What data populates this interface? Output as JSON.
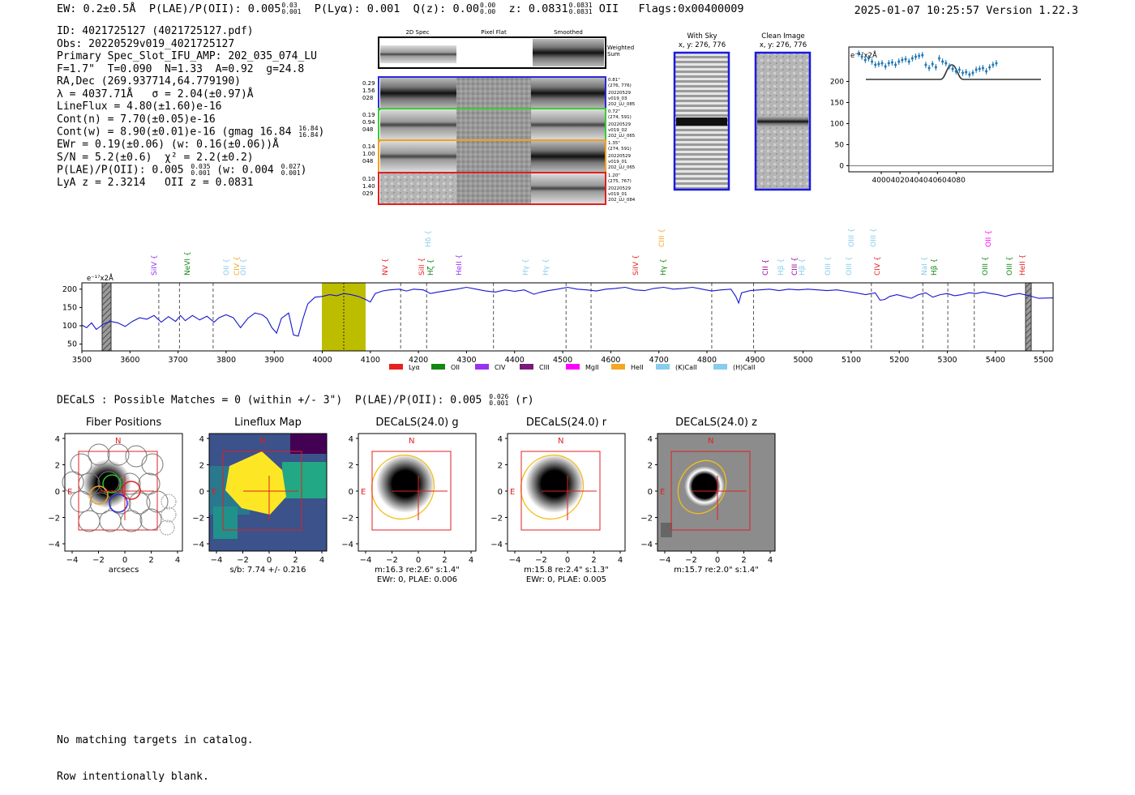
{
  "header": {
    "ew": "EW: 0.2±0.5Å",
    "plae_label": "P(LAE)/P(OII): 0.005",
    "plae_hi": "0.03",
    "plae_lo": "0.001",
    "plya": "P(Lyα): 0.001",
    "qz_label": "Q(z): 0.00",
    "qz_hi": "0.00",
    "qz_lo": "0.00",
    "z_label": "z: 0.0831",
    "z_hi": "0.0831",
    "z_lo": "0.0831",
    "z_line": "OII",
    "flags": "Flags:0x00400009",
    "datetime": "2025-01-07 10:25:57",
    "version": "Version 1.22.3"
  },
  "info": {
    "id": "ID: 4021725127 (4021725127.pdf)",
    "obs": "Obs: 20220529v019_4021725127",
    "primary": "Primary Spec_Slot_IFU_AMP: 202_035_074_LU",
    "fiber": "F=1.7\"  T=0.090  N=1.33  A=0.92  g=24.8",
    "radec": "RA,Dec (269.937714,64.779190)",
    "lambda": "λ = 4037.71Å   σ = 2.04(±0.97)Å",
    "lineflux": "LineFlux = 4.80(±1.60)e-16",
    "contn": "Cont(n) = 7.70(±0.05)e-16",
    "contw": "Cont(w) = 8.90(±0.01)e-16 (gmag 16.84",
    "contw_hi": "16.84",
    "contw_lo": "16.84",
    "contw_end": ")",
    "ewr": "EWr = 0.19(±0.06) (w: 0.16(±0.06))Å",
    "sn": "S/N = 5.2(±0.6)  χ² = 2.2(±0.2)",
    "plae": "P(LAE)/P(OII): 0.005",
    "plae_hi": "0.035",
    "plae_lo": "0.001",
    "plae_w": " (w: 0.004",
    "plae_w_hi": "0.027",
    "plae_w_lo": "0.001",
    "plae_w_end": ")",
    "lyaz": "LyA z = 2.3214   OII z = 0.0831"
  },
  "cutouts": {
    "col_headers": [
      "2D Spec",
      "Pixel Flat",
      "Smoothed"
    ],
    "weighted_label": "Weighted",
    "weighted_label2": "Sum",
    "rows": [
      {
        "left": [
          "0.29",
          "1.56",
          "028"
        ],
        "right": [
          "0.81\"",
          "(276, 776)",
          "20220529",
          "v019_03",
          "202_LU_085"
        ],
        "color": "#2a2ad6"
      },
      {
        "left": [
          "0.19",
          "0.94",
          "048"
        ],
        "right": [
          "0.72\"",
          "(274, 591)",
          "20220529",
          "v019_02",
          "202_LU_065"
        ],
        "color": "#3acb34"
      },
      {
        "left": [
          "0.14",
          "1.00",
          "048"
        ],
        "right": [
          "1.35\"",
          "(274, 591)",
          "20220529",
          "v019_01",
          "202_LU_065"
        ],
        "color": "#f0a020"
      },
      {
        "left": [
          "0.10",
          "1.40",
          "029"
        ],
        "right": [
          "1.20\"",
          "(275, 767)",
          "20220529",
          "v019_01",
          "202_LU_084"
        ],
        "color": "#e02020"
      }
    ],
    "with_sky": "With Sky",
    "clean_image": "Clean Image",
    "xy1": "x, y: 276, 776",
    "xy2": "x, y: 276, 776"
  },
  "zoom_chart": {
    "unit": "e⁻¹⁷x2Å",
    "xticks": [
      "4000",
      "4020",
      "4040",
      "4060",
      "4080"
    ],
    "yticks": [
      "0",
      "50",
      "100",
      "150",
      "200"
    ]
  },
  "spectrum": {
    "unit": "e⁻¹⁷x2Å",
    "xticks": [
      "3500",
      "3600",
      "3700",
      "3800",
      "3900",
      "4000",
      "4100",
      "4200",
      "4300",
      "4400",
      "4500",
      "4600",
      "4700",
      "4800",
      "4900",
      "5000",
      "5100",
      "5200",
      "5300",
      "5400",
      "5500"
    ],
    "yticks": [
      "50",
      "100",
      "150",
      "200"
    ],
    "lines": [
      {
        "label": "SiIV",
        "color": "#9933ee",
        "level": 1
      },
      {
        "label": "NeVI",
        "color": "#118811",
        "level": 1
      },
      {
        "label": "OII",
        "color": "#88ccee",
        "level": 1
      },
      {
        "label": "CIV",
        "color": "#f5a623",
        "level": 1
      },
      {
        "label": "OII",
        "color": "#88ccee",
        "level": 1
      },
      {
        "label": "NV",
        "color": "#e82020",
        "level": 1
      },
      {
        "label": "SiII",
        "color": "#e82020",
        "level": 1
      },
      {
        "label": "Hζ",
        "color": "#118811",
        "level": 1
      },
      {
        "label": "Hδ",
        "color": "#88ccee",
        "level": 0
      },
      {
        "label": "HeII",
        "color": "#9933ee",
        "level": 1
      },
      {
        "label": "Hγ",
        "color": "#88ccee",
        "level": 1
      },
      {
        "label": "Hγ",
        "color": "#88ccee",
        "level": 1
      },
      {
        "label": "SiIV",
        "color": "#e82020",
        "level": 1
      },
      {
        "label": "CIII",
        "color": "#f5a623",
        "level": 0
      },
      {
        "label": "Hγ",
        "color": "#118811",
        "level": 1
      },
      {
        "label": "CII",
        "color": "#990099",
        "level": 1
      },
      {
        "label": "Hβ",
        "color": "#88ccee",
        "level": 1
      },
      {
        "label": "CIII",
        "color": "#990099",
        "level": 1
      },
      {
        "label": "Hβ",
        "color": "#88ccee",
        "level": 1
      },
      {
        "label": "OIII",
        "color": "#88ccee",
        "level": 1
      },
      {
        "label": "OIII",
        "color": "#88ccee",
        "level": 1
      },
      {
        "label": "OIII",
        "color": "#88ccee",
        "level": 0
      },
      {
        "label": "OIII",
        "color": "#88ccee",
        "level": 0
      },
      {
        "label": "CIV",
        "color": "#e82020",
        "level": 1
      },
      {
        "label": "NaI",
        "color": "#88ccee",
        "level": 1
      },
      {
        "label": "Hβ",
        "color": "#118811",
        "level": 1
      },
      {
        "label": "OIII",
        "color": "#118811",
        "level": 1
      },
      {
        "label": "OII",
        "color": "#ff00ff",
        "level": 0
      },
      {
        "label": "OIII",
        "color": "#118811",
        "level": 1
      },
      {
        "label": "HeII",
        "color": "#e82020",
        "level": 1
      }
    ],
    "legend": [
      {
        "label": "Lyα",
        "color": "#e82020"
      },
      {
        "label": "OII",
        "color": "#118811"
      },
      {
        "label": "CIV",
        "color": "#9933ee"
      },
      {
        "label": "CIII",
        "color": "#7a1a7a"
      },
      {
        "label": "MgII",
        "color": "#ff00ff"
      },
      {
        "label": "HeII",
        "color": "#f5a623"
      },
      {
        "label": "(K)CaII",
        "color": "#88ccee"
      },
      {
        "label": "(H)CaII",
        "color": "#88ccee"
      }
    ]
  },
  "decals": {
    "title_line": "DECaLS : Possible Matches = 0 (within +/- 3\")  P(LAE)/P(OII): 0.005",
    "hi": "0.026",
    "lo": "0.001",
    "band": "(r)",
    "ticks": [
      "−4",
      "−2",
      "0",
      "2",
      "4"
    ],
    "panels": [
      {
        "title": "Fiber Positions",
        "caption1": "arcsecs",
        "caption2": "",
        "n": "N",
        "e": "E"
      },
      {
        "title": "Lineflux Map",
        "caption1": "s/b: 7.74 +/- 0.216",
        "caption2": "",
        "n": "N",
        "e": "E"
      },
      {
        "title": "DECaLS(24.0) g",
        "caption1": "m:16.3  re:2.6\"  s:1.4\"",
        "caption2": "EWr: 0, PLAE: 0.006",
        "n": "N",
        "e": "E"
      },
      {
        "title": "DECaLS(24.0) r",
        "caption1": "m:15.8  re:2.4\"  s:1.3\"",
        "caption2": "EWr: 0, PLAE: 0.005",
        "n": "N",
        "e": "E"
      },
      {
        "title": "DECaLS(24.0) z",
        "caption1": "m:15.7  re:2.0\"  s:1.4\"",
        "caption2": "",
        "n": "N",
        "e": "E"
      }
    ]
  },
  "footer": {
    "line1": "No matching targets in catalog.",
    "line2": "Row intentionally blank."
  },
  "colors": {
    "blue_line": "#1515d0",
    "olive": "#bdbd00",
    "marker": "#1f77b4",
    "red_box": "#e02020",
    "gold": "#f2bf18"
  }
}
